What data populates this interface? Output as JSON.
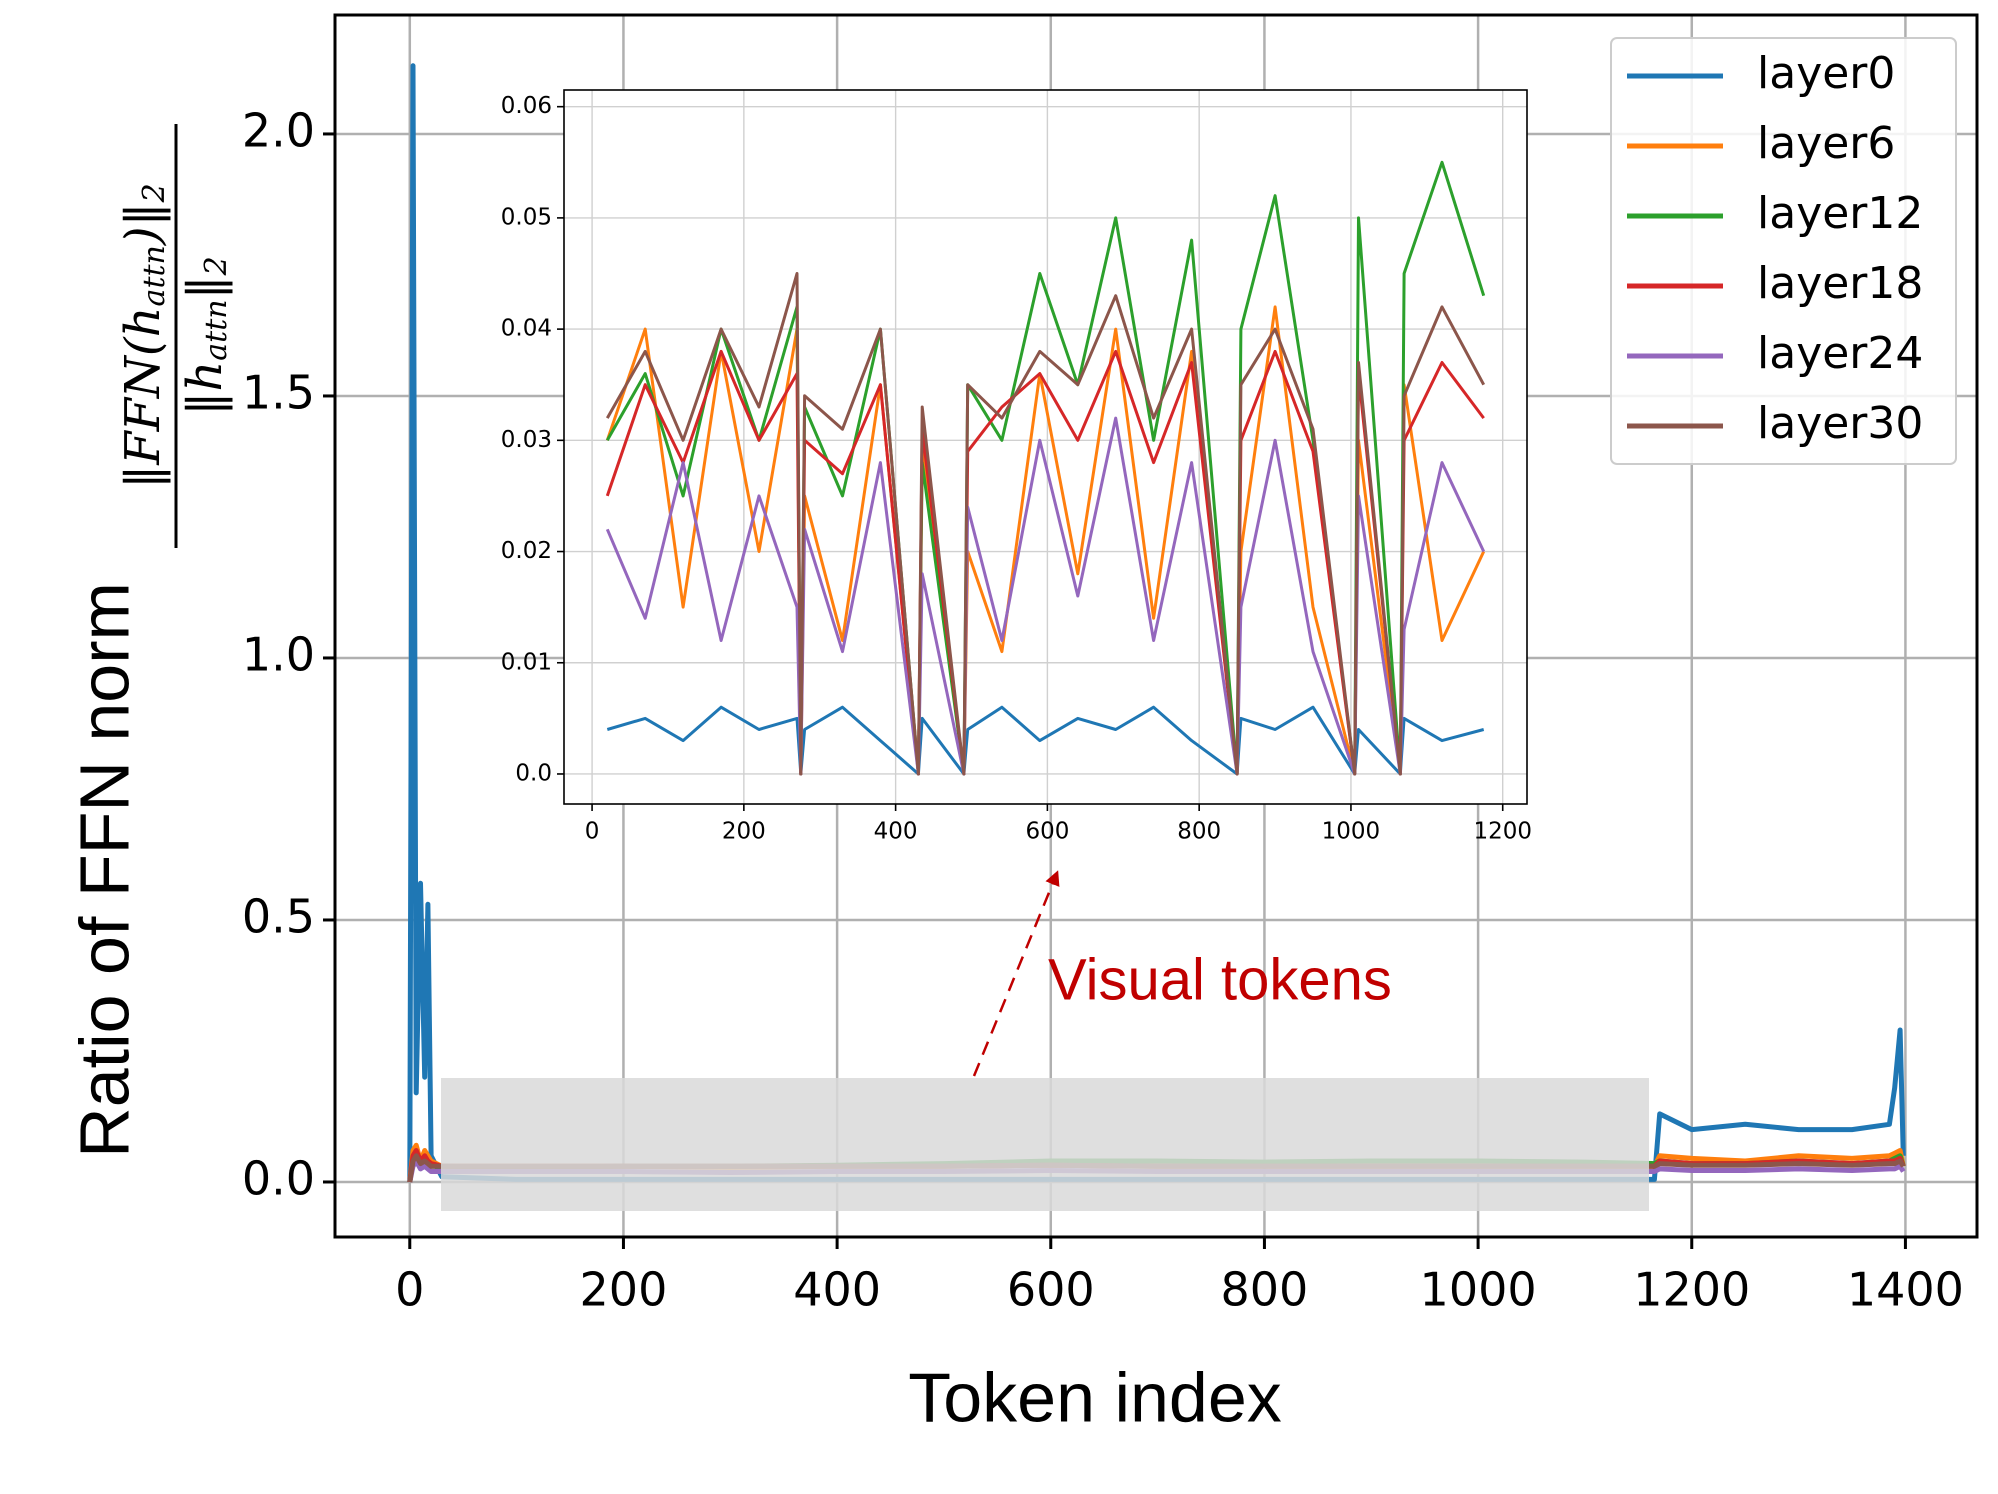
{
  "chart_data": [
    {
      "type": "line",
      "xlabel": "Token index",
      "ylabel": "Ratio of FFN norm",
      "ylabel_numerator": [
        "‖",
        "FFN",
        "(",
        "h",
        "attn",
        ")‖",
        "2"
      ],
      "ylabel_denominator": [
        "‖",
        "h",
        "attn",
        "‖",
        "2"
      ],
      "annotation": "Visual tokens",
      "legend": "upper right",
      "grid": true,
      "xlim": [
        -70,
        1467
      ],
      "ylim": [
        -0.105,
        2.227
      ],
      "xticks": [
        0,
        200,
        400,
        600,
        800,
        1000,
        1200,
        1400
      ],
      "yticks": [
        {
          "value": 0,
          "label": "0.0"
        },
        0.5,
        {
          "value": 1,
          "label": "1.0"
        },
        1.5,
        {
          "value": 2,
          "label": "2.0"
        }
      ],
      "x": [
        0,
        3,
        6,
        10,
        14,
        17,
        20,
        30,
        100,
        200,
        300,
        400,
        500,
        600,
        700,
        800,
        900,
        1000,
        1100,
        1165,
        1170,
        1200,
        1250,
        1300,
        1350,
        1385,
        1390,
        1395,
        1398
      ],
      "series": [
        {
          "name": "layer0",
          "color": "#1f77b4",
          "values": [
            0,
            2.13,
            0.17,
            0.57,
            0.2,
            0.53,
            0.05,
            0.01,
            0.005,
            0.005,
            0.005,
            0.005,
            0.005,
            0.005,
            0.005,
            0.005,
            0.005,
            0.005,
            0.005,
            0.005,
            0.13,
            0.1,
            0.11,
            0.1,
            0.1,
            0.11,
            0.18,
            0.29,
            0.05
          ]
        },
        {
          "name": "layer6",
          "color": "#ff7f0e",
          "values": [
            0,
            0.06,
            0.07,
            0.04,
            0.06,
            0.05,
            0.04,
            0.03,
            0.03,
            0.03,
            0.028,
            0.03,
            0.03,
            0.032,
            0.03,
            0.03,
            0.03,
            0.03,
            0.03,
            0.03,
            0.05,
            0.045,
            0.04,
            0.05,
            0.045,
            0.05,
            0.055,
            0.06,
            0.03
          ]
        },
        {
          "name": "layer12",
          "color": "#2ca02c",
          "values": [
            0,
            0.04,
            0.05,
            0.03,
            0.04,
            0.035,
            0.03,
            0.03,
            0.028,
            0.03,
            0.03,
            0.032,
            0.035,
            0.04,
            0.04,
            0.038,
            0.04,
            0.04,
            0.038,
            0.035,
            0.04,
            0.035,
            0.035,
            0.04,
            0.035,
            0.04,
            0.045,
            0.05,
            0.03
          ]
        },
        {
          "name": "layer18",
          "color": "#d62728",
          "values": [
            0,
            0.05,
            0.06,
            0.04,
            0.05,
            0.04,
            0.035,
            0.03,
            0.03,
            0.03,
            0.03,
            0.03,
            0.03,
            0.032,
            0.03,
            0.03,
            0.03,
            0.03,
            0.03,
            0.03,
            0.04,
            0.035,
            0.035,
            0.04,
            0.035,
            0.04,
            0.04,
            0.045,
            0.03
          ]
        },
        {
          "name": "layer24",
          "color": "#9467bd",
          "values": [
            0,
            0.03,
            0.04,
            0.025,
            0.03,
            0.025,
            0.02,
            0.02,
            0.02,
            0.02,
            0.018,
            0.02,
            0.02,
            0.022,
            0.02,
            0.02,
            0.02,
            0.02,
            0.02,
            0.02,
            0.025,
            0.022,
            0.022,
            0.025,
            0.022,
            0.025,
            0.025,
            0.03,
            0.02
          ]
        },
        {
          "name": "layer30",
          "color": "#8c564b",
          "values": [
            0,
            0.04,
            0.05,
            0.035,
            0.04,
            0.035,
            0.03,
            0.03,
            0.03,
            0.03,
            0.03,
            0.03,
            0.03,
            0.032,
            0.03,
            0.03,
            0.03,
            0.03,
            0.03,
            0.03,
            0.035,
            0.032,
            0.032,
            0.035,
            0.032,
            0.035,
            0.035,
            0.04,
            0.03
          ]
        }
      ]
    },
    {
      "type": "line",
      "grid": true,
      "xlim": [
        -37,
        1232
      ],
      "ylim": [
        -0.0027,
        0.0615
      ],
      "xticks": [
        0,
        200,
        400,
        600,
        800,
        1000,
        1200
      ],
      "yticks": [
        {
          "value": 0,
          "label": "0.0"
        },
        0.01,
        0.02,
        0.03,
        0.04,
        0.05,
        0.06
      ],
      "x": [
        20,
        70,
        120,
        170,
        220,
        270,
        275,
        280,
        330,
        380,
        430,
        435,
        490,
        495,
        540,
        590,
        640,
        690,
        740,
        790,
        850,
        855,
        900,
        950,
        1005,
        1010,
        1065,
        1070,
        1120,
        1175
      ],
      "series": [
        {
          "color": "#1f77b4",
          "values": [
            0.004,
            0.005,
            0.003,
            0.006,
            0.004,
            0.005,
            0,
            0.004,
            0.006,
            0.003,
            0,
            0.005,
            0,
            0.004,
            0.006,
            0.003,
            0.005,
            0.004,
            0.006,
            0.003,
            0,
            0.005,
            0.004,
            0.006,
            0,
            0.004,
            0,
            0.005,
            0.003,
            0.004
          ]
        },
        {
          "color": "#ff7f0e",
          "values": [
            0.03,
            0.04,
            0.015,
            0.038,
            0.02,
            0.04,
            0,
            0.025,
            0.012,
            0.035,
            0,
            0.03,
            0,
            0.02,
            0.011,
            0.036,
            0.018,
            0.04,
            0.014,
            0.038,
            0,
            0.02,
            0.042,
            0.015,
            0,
            0.03,
            0,
            0.035,
            0.012,
            0.02
          ]
        },
        {
          "color": "#2ca02c",
          "values": [
            0.03,
            0.036,
            0.025,
            0.04,
            0.03,
            0.042,
            0,
            0.033,
            0.025,
            0.04,
            0,
            0.028,
            0,
            0.035,
            0.03,
            0.045,
            0.035,
            0.05,
            0.03,
            0.048,
            0,
            0.04,
            0.052,
            0.03,
            0,
            0.05,
            0,
            0.045,
            0.055,
            0.043
          ]
        },
        {
          "color": "#d62728",
          "values": [
            0.025,
            0.035,
            0.028,
            0.038,
            0.03,
            0.036,
            0,
            0.03,
            0.027,
            0.035,
            0,
            0.031,
            0,
            0.029,
            0.033,
            0.036,
            0.03,
            0.038,
            0.028,
            0.037,
            0,
            0.03,
            0.038,
            0.029,
            0,
            0.036,
            0,
            0.03,
            0.037,
            0.032
          ]
        },
        {
          "color": "#9467bd",
          "values": [
            0.022,
            0.014,
            0.028,
            0.012,
            0.025,
            0.015,
            0,
            0.022,
            0.011,
            0.028,
            0,
            0.018,
            0,
            0.024,
            0.012,
            0.03,
            0.016,
            0.032,
            0.012,
            0.028,
            0,
            0.015,
            0.03,
            0.011,
            0,
            0.025,
            0,
            0.013,
            0.028,
            0.02
          ]
        },
        {
          "color": "#8c564b",
          "values": [
            0.032,
            0.038,
            0.03,
            0.04,
            0.033,
            0.045,
            0,
            0.034,
            0.031,
            0.04,
            0,
            0.033,
            0,
            0.035,
            0.032,
            0.038,
            0.035,
            0.043,
            0.032,
            0.04,
            0,
            0.035,
            0.04,
            0.031,
            0,
            0.037,
            0,
            0.034,
            0.042,
            0.035
          ]
        }
      ]
    }
  ]
}
